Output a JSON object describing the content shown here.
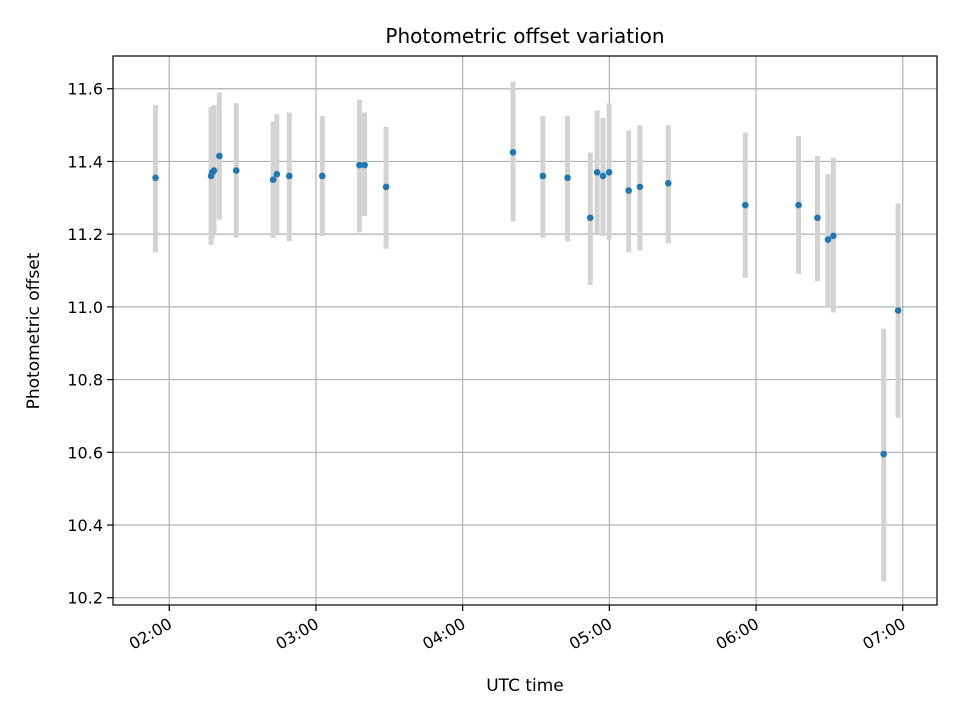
{
  "chart_data": {
    "type": "scatter",
    "title": "Photometric offset variation",
    "xlabel": "UTC time",
    "ylabel": "Photometric offset",
    "x_ticks": [
      "02:00",
      "03:00",
      "04:00",
      "05:00",
      "06:00",
      "07:00"
    ],
    "x_tick_minutes": [
      120,
      180,
      240,
      300,
      360,
      420
    ],
    "y_ticks": [
      "10.2",
      "10.4",
      "10.6",
      "10.8",
      "11.0",
      "11.2",
      "11.4",
      "11.6"
    ],
    "y_tick_values": [
      10.2,
      10.4,
      10.6,
      10.8,
      11.0,
      11.2,
      11.4,
      11.6
    ],
    "xlim": [
      "01:37",
      "07:14"
    ],
    "xlim_minutes": [
      97,
      434
    ],
    "ylim": [
      10.18,
      11.69
    ],
    "grid": true,
    "colors": {
      "points": "#1f77b4",
      "errorbars": "#d3d3d3",
      "grid": "#b0b0b0"
    },
    "points": [
      {
        "time": "01:54",
        "t": 114.4,
        "y": 11.355,
        "lo": 11.15,
        "hi": 11.555
      },
      {
        "time": "02:17",
        "t": 137.1,
        "y": 11.36,
        "lo": 11.17,
        "hi": 11.55
      },
      {
        "time": "02:17",
        "t": 137.6,
        "y": 11.37,
        "lo": 11.19,
        "hi": 11.55
      },
      {
        "time": "02:18",
        "t": 138.3,
        "y": 11.375,
        "lo": 11.2,
        "hi": 11.555
      },
      {
        "time": "02:20",
        "t": 140.5,
        "y": 11.415,
        "lo": 11.24,
        "hi": 11.59
      },
      {
        "time": "02:27",
        "t": 147.4,
        "y": 11.375,
        "lo": 11.19,
        "hi": 11.56
      },
      {
        "time": "02:42",
        "t": 162.5,
        "y": 11.35,
        "lo": 11.19,
        "hi": 11.51
      },
      {
        "time": "02:44",
        "t": 164.0,
        "y": 11.365,
        "lo": 11.2,
        "hi": 11.53
      },
      {
        "time": "02:49",
        "t": 169.1,
        "y": 11.36,
        "lo": 11.18,
        "hi": 11.535
      },
      {
        "time": "03:03",
        "t": 182.6,
        "y": 11.36,
        "lo": 11.195,
        "hi": 11.525
      },
      {
        "time": "03:18",
        "t": 197.8,
        "y": 11.39,
        "lo": 11.205,
        "hi": 11.57
      },
      {
        "time": "03:20",
        "t": 199.9,
        "y": 11.39,
        "lo": 11.25,
        "hi": 11.535
      },
      {
        "time": "03:29",
        "t": 208.7,
        "y": 11.33,
        "lo": 11.16,
        "hi": 11.495
      },
      {
        "time": "04:21",
        "t": 260.6,
        "y": 11.425,
        "lo": 11.235,
        "hi": 11.62
      },
      {
        "time": "04:33",
        "t": 272.8,
        "y": 11.36,
        "lo": 11.19,
        "hi": 11.525
      },
      {
        "time": "04:43",
        "t": 282.9,
        "y": 11.355,
        "lo": 11.18,
        "hi": 11.525
      },
      {
        "time": "04:52",
        "t": 292.2,
        "y": 11.245,
        "lo": 11.06,
        "hi": 11.425
      },
      {
        "time": "04:55",
        "t": 295.0,
        "y": 11.37,
        "lo": 11.2,
        "hi": 11.54
      },
      {
        "time": "04:57",
        "t": 297.4,
        "y": 11.36,
        "lo": 11.195,
        "hi": 11.52
      },
      {
        "time": "05:00",
        "t": 299.9,
        "y": 11.37,
        "lo": 11.185,
        "hi": 11.56
      },
      {
        "time": "05:08",
        "t": 307.9,
        "y": 11.32,
        "lo": 11.15,
        "hi": 11.485
      },
      {
        "time": "05:12",
        "t": 312.5,
        "y": 11.33,
        "lo": 11.155,
        "hi": 11.5
      },
      {
        "time": "05:24",
        "t": 324.1,
        "y": 11.34,
        "lo": 11.175,
        "hi": 11.5
      },
      {
        "time": "05:56",
        "t": 355.6,
        "y": 11.28,
        "lo": 11.08,
        "hi": 11.48
      },
      {
        "time": "06:18",
        "t": 377.4,
        "y": 11.28,
        "lo": 11.09,
        "hi": 11.47
      },
      {
        "time": "06:25",
        "t": 385.1,
        "y": 11.245,
        "lo": 11.07,
        "hi": 11.415
      },
      {
        "time": "06:29",
        "t": 389.4,
        "y": 11.185,
        "lo": 11.0,
        "hi": 11.365
      },
      {
        "time": "06:31",
        "t": 391.6,
        "y": 11.195,
        "lo": 10.985,
        "hi": 11.41
      },
      {
        "time": "06:52",
        "t": 412.2,
        "y": 10.595,
        "lo": 10.245,
        "hi": 10.94
      },
      {
        "time": "06:58",
        "t": 418.1,
        "y": 10.99,
        "lo": 10.695,
        "hi": 11.285
      }
    ]
  }
}
